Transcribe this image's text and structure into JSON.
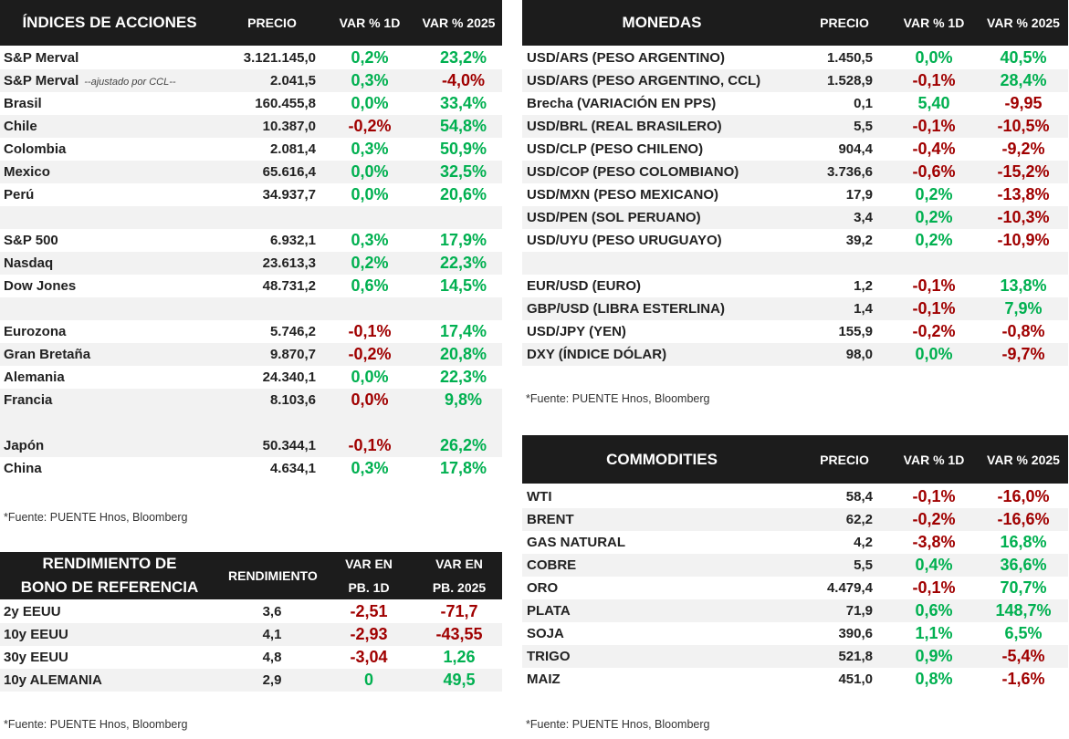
{
  "tone_colors": {
    "up": "#00b050",
    "down": "#a00000"
  },
  "indices": {
    "header": [
      "ÍNDICES DE ACCIONES",
      "PRECIO",
      "VAR % 1D",
      "VAR % 2025"
    ],
    "groups": [
      [
        [
          "S&P Merval",
          "3.121.145,0",
          {
            "text": "0,2%",
            "tone": "up"
          },
          {
            "text": "23,2%",
            "tone": "up"
          }
        ],
        [
          {
            "text": "S&P Merval",
            "note": "--ajustado por CCL--"
          },
          "2.041,5",
          {
            "text": "0,3%",
            "tone": "up"
          },
          {
            "text": "-4,0%",
            "tone": "down"
          }
        ],
        [
          "Brasil",
          "160.455,8",
          {
            "text": "0,0%",
            "tone": "up"
          },
          {
            "text": "33,4%",
            "tone": "up"
          }
        ],
        [
          "Chile",
          "10.387,0",
          {
            "text": "-0,2%",
            "tone": "down"
          },
          {
            "text": "54,8%",
            "tone": "up"
          }
        ],
        [
          "Colombia",
          "2.081,4",
          {
            "text": "0,3%",
            "tone": "up"
          },
          {
            "text": "50,9%",
            "tone": "up"
          }
        ],
        [
          "Mexico",
          "65.616,4",
          {
            "text": "0,0%",
            "tone": "up"
          },
          {
            "text": "32,5%",
            "tone": "up"
          }
        ],
        [
          "Perú",
          "34.937,7",
          {
            "text": "0,0%",
            "tone": "up"
          },
          {
            "text": "20,6%",
            "tone": "up"
          }
        ]
      ],
      [
        [
          "S&P 500",
          "6.932,1",
          {
            "text": "0,3%",
            "tone": "up"
          },
          {
            "text": "17,9%",
            "tone": "up"
          }
        ],
        [
          "Nasdaq",
          "23.613,3",
          {
            "text": "0,2%",
            "tone": "up"
          },
          {
            "text": "22,3%",
            "tone": "up"
          }
        ],
        [
          "Dow Jones",
          "48.731,2",
          {
            "text": "0,6%",
            "tone": "up"
          },
          {
            "text": "14,5%",
            "tone": "up"
          }
        ]
      ],
      [
        [
          "Eurozona",
          "5.746,2",
          {
            "text": "-0,1%",
            "tone": "down"
          },
          {
            "text": "17,4%",
            "tone": "up"
          }
        ],
        [
          "Gran Bretaña",
          "9.870,7",
          {
            "text": "-0,2%",
            "tone": "down"
          },
          {
            "text": "20,8%",
            "tone": "up"
          }
        ],
        [
          "Alemania",
          "24.340,1",
          {
            "text": "0,0%",
            "tone": "up"
          },
          {
            "text": "22,3%",
            "tone": "up"
          }
        ],
        [
          "Francia",
          "8.103,6",
          {
            "text": "0,0%",
            "tone": "down"
          },
          {
            "text": "9,8%",
            "tone": "up"
          }
        ]
      ],
      [
        [
          "Japón",
          "50.344,1",
          {
            "text": "-0,1%",
            "tone": "down"
          },
          {
            "text": "26,2%",
            "tone": "up"
          }
        ],
        [
          "China",
          "4.634,1",
          {
            "text": "0,3%",
            "tone": "up"
          },
          {
            "text": "17,8%",
            "tone": "up"
          }
        ]
      ]
    ],
    "footnote": "*Fuente: PUENTE Hnos, Bloomberg"
  },
  "bonds": {
    "header": [
      [
        "RENDIMIENTO DE",
        "BONO DE REFERENCIA"
      ],
      "RENDIMIENTO",
      [
        "VAR EN",
        "PB. 1D"
      ],
      [
        "VAR EN",
        "PB. 2025"
      ]
    ],
    "groups": [
      [
        [
          "2y EEUU",
          "3,6",
          {
            "text": "-2,51",
            "tone": "down"
          },
          {
            "text": "-71,7",
            "tone": "down"
          }
        ],
        [
          "10y EEUU",
          "4,1",
          {
            "text": "-2,93",
            "tone": "down"
          },
          {
            "text": "-43,55",
            "tone": "down"
          }
        ],
        [
          "30y EEUU",
          "4,8",
          {
            "text": "-3,04",
            "tone": "down"
          },
          {
            "text": "1,26",
            "tone": "up"
          }
        ],
        [
          "10y ALEMANIA",
          "2,9",
          {
            "text": "0",
            "tone": "up"
          },
          {
            "text": "49,5",
            "tone": "up"
          }
        ]
      ]
    ],
    "footnote": "*Fuente: PUENTE Hnos, Bloomberg"
  },
  "currencies": {
    "header": [
      "MONEDAS",
      "PRECIO",
      "VAR % 1D",
      "VAR % 2025"
    ],
    "groups": [
      [
        [
          "USD/ARS (PESO ARGENTINO)",
          "1.450,5",
          {
            "text": "0,0%",
            "tone": "up"
          },
          {
            "text": "40,5%",
            "tone": "up"
          }
        ],
        [
          "USD/ARS (PESO ARGENTINO, CCL)",
          "1.528,9",
          {
            "text": "-0,1%",
            "tone": "down"
          },
          {
            "text": "28,4%",
            "tone": "up"
          }
        ],
        [
          "Brecha (VARIACIÓN EN PPS)",
          "0,1",
          {
            "text": "5,40",
            "tone": "up"
          },
          {
            "text": "-9,95",
            "tone": "down"
          }
        ],
        [
          "USD/BRL (REAL BRASILERO)",
          "5,5",
          {
            "text": "-0,1%",
            "tone": "down"
          },
          {
            "text": "-10,5%",
            "tone": "down"
          }
        ],
        [
          "USD/CLP (PESO CHILENO)",
          "904,4",
          {
            "text": "-0,4%",
            "tone": "down"
          },
          {
            "text": "-9,2%",
            "tone": "down"
          }
        ],
        [
          "USD/COP (PESO COLOMBIANO)",
          "3.736,6",
          {
            "text": "-0,6%",
            "tone": "down"
          },
          {
            "text": "-15,2%",
            "tone": "down"
          }
        ],
        [
          "USD/MXN (PESO MEXICANO)",
          "17,9",
          {
            "text": "0,2%",
            "tone": "up"
          },
          {
            "text": "-13,8%",
            "tone": "down"
          }
        ],
        [
          "USD/PEN (SOL PERUANO)",
          "3,4",
          {
            "text": "0,2%",
            "tone": "up"
          },
          {
            "text": "-10,3%",
            "tone": "down"
          }
        ],
        [
          "USD/UYU (PESO URUGUAYO)",
          "39,2",
          {
            "text": "0,2%",
            "tone": "up"
          },
          {
            "text": "-10,9%",
            "tone": "down"
          }
        ]
      ],
      [
        [
          "EUR/USD (EURO)",
          "1,2",
          {
            "text": "-0,1%",
            "tone": "down"
          },
          {
            "text": "13,8%",
            "tone": "up"
          }
        ],
        [
          "GBP/USD (LIBRA ESTERLINA)",
          "1,4",
          {
            "text": "-0,1%",
            "tone": "down"
          },
          {
            "text": "7,9%",
            "tone": "up"
          }
        ],
        [
          "USD/JPY (YEN)",
          "155,9",
          {
            "text": "-0,2%",
            "tone": "down"
          },
          {
            "text": "-0,8%",
            "tone": "down"
          }
        ],
        [
          "DXY (ÍNDICE DÓLAR)",
          "98,0",
          {
            "text": "0,0%",
            "tone": "up"
          },
          {
            "text": "-9,7%",
            "tone": "down"
          }
        ]
      ]
    ],
    "footnote": "*Fuente: PUENTE Hnos, Bloomberg"
  },
  "commodities": {
    "header": [
      "COMMODITIES",
      "PRECIO",
      "VAR % 1D",
      "VAR % 2025"
    ],
    "groups": [
      [
        [
          "WTI",
          "58,4",
          {
            "text": "-0,1%",
            "tone": "down"
          },
          {
            "text": "-16,0%",
            "tone": "down"
          }
        ],
        [
          "BRENT",
          "62,2",
          {
            "text": "-0,2%",
            "tone": "down"
          },
          {
            "text": "-16,6%",
            "tone": "down"
          }
        ],
        [
          "GAS NATURAL",
          "4,2",
          {
            "text": "-3,8%",
            "tone": "down"
          },
          {
            "text": "16,8%",
            "tone": "up"
          }
        ],
        [
          "COBRE",
          "5,5",
          {
            "text": "0,4%",
            "tone": "up"
          },
          {
            "text": "36,6%",
            "tone": "up"
          }
        ],
        [
          "ORO",
          "4.479,4",
          {
            "text": "-0,1%",
            "tone": "down"
          },
          {
            "text": "70,7%",
            "tone": "up"
          }
        ],
        [
          "PLATA",
          "71,9",
          {
            "text": "0,6%",
            "tone": "up"
          },
          {
            "text": "148,7%",
            "tone": "up"
          }
        ],
        [
          "SOJA",
          "390,6",
          {
            "text": "1,1%",
            "tone": "up"
          },
          {
            "text": "6,5%",
            "tone": "up"
          }
        ],
        [
          "TRIGO",
          "521,8",
          {
            "text": "0,9%",
            "tone": "up"
          },
          {
            "text": "-5,4%",
            "tone": "down"
          }
        ],
        [
          "MAIZ",
          "451,0",
          {
            "text": "0,8%",
            "tone": "up"
          },
          {
            "text": "-1,6%",
            "tone": "down"
          }
        ]
      ]
    ],
    "footnote": "*Fuente: PUENTE Hnos, Bloomberg"
  }
}
